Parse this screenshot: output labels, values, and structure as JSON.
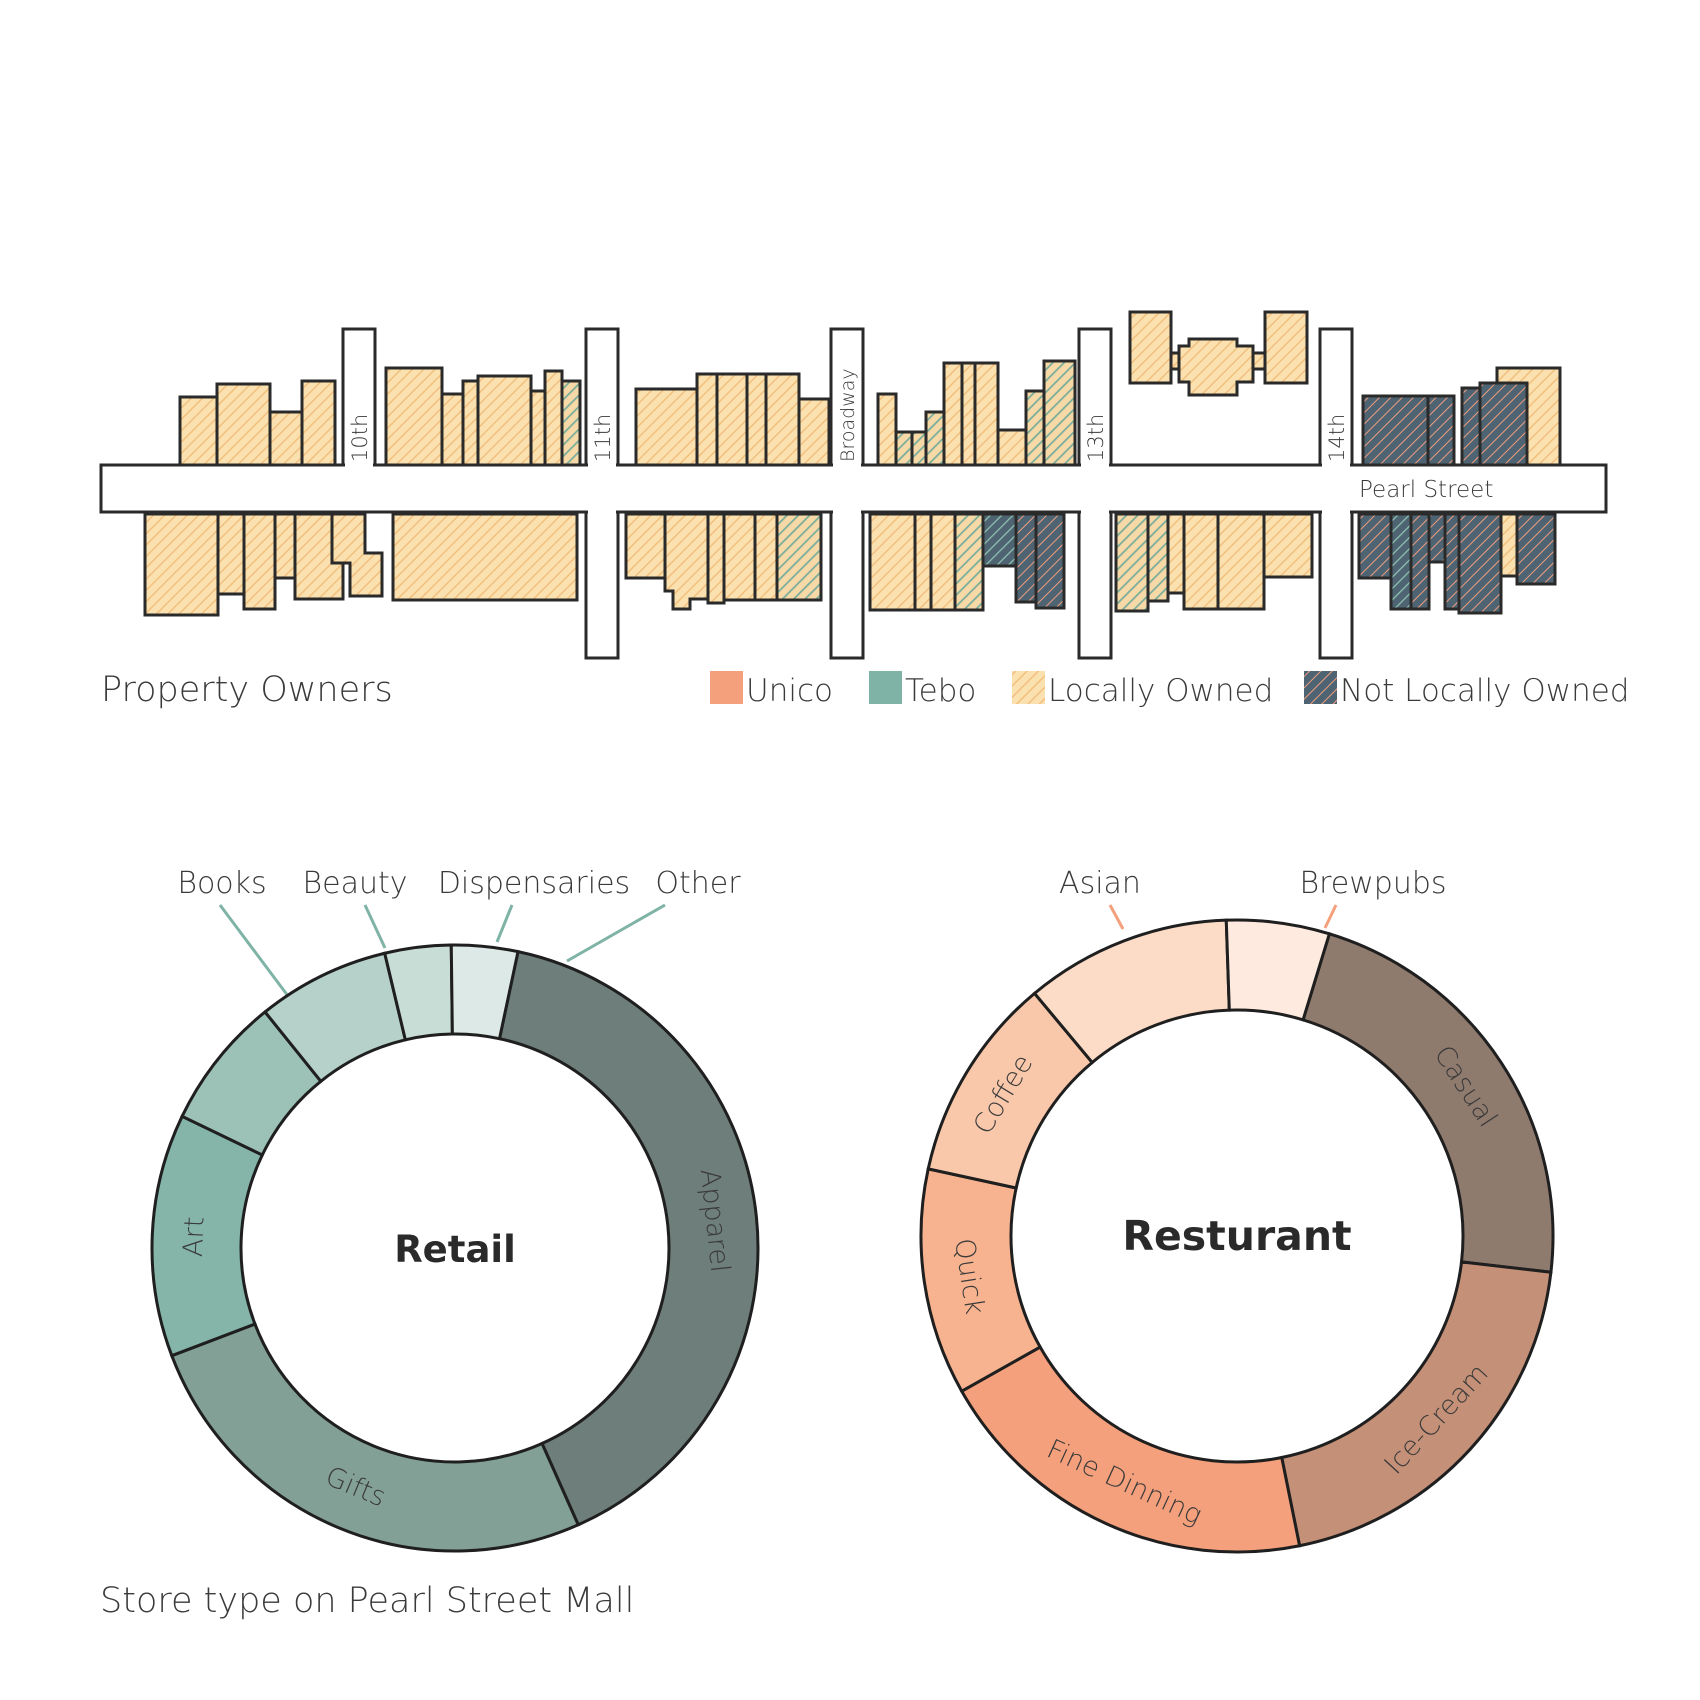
{
  "map": {
    "title": "Property Owners",
    "street_name": "Pearl Street",
    "cross_streets": [
      "10th",
      "11th",
      "Broadway",
      "13th",
      "14th"
    ]
  },
  "legend": [
    {
      "label": "Unico",
      "color": "#f5a07c",
      "pattern": "solid"
    },
    {
      "label": "Tebo",
      "color": "#7fb3a5",
      "pattern": "solid"
    },
    {
      "label": "Locally Owned",
      "color": "#f8d49c",
      "pattern": "hatch"
    },
    {
      "label": "Not Locally Owned",
      "color": "#4e6878",
      "pattern": "hatch"
    }
  ],
  "colors": {
    "local_fill": "#fbe1b0",
    "local_hatch": "#f2c07e",
    "tebo_mix": "#9fbfa6",
    "notlocal_fill": "#4f6472",
    "notlocal_hatch": "#ee9c7e",
    "outline": "#2a2a2a"
  },
  "charts_caption": "Store type on Pearl Street Mall",
  "chart_data": [
    {
      "type": "pie",
      "donut": true,
      "title": "Retail",
      "categories": [
        "Apparel",
        "Gifts",
        "Art",
        "Books",
        "Beauty",
        "Dispensaries",
        "Other"
      ],
      "values": [
        34,
        22,
        11,
        6,
        6,
        3,
        3
      ],
      "colors": [
        "#6e7e7a",
        "#83a097",
        "#84b5a8",
        "#9cc1b7",
        "#b5d1c9",
        "#c9ddd7",
        "#dde9e6"
      ]
    },
    {
      "type": "pie",
      "donut": true,
      "title": "Resturant",
      "categories": [
        "Casual",
        "Ice-Cream",
        "Fine Dinning",
        "Quick",
        "Coffee",
        "Asian",
        "Brewpubs"
      ],
      "values": [
        21,
        19,
        19,
        11,
        10,
        10,
        5
      ],
      "colors": [
        "#8f7a6e",
        "#c49077",
        "#f4a07c",
        "#f7b38f",
        "#f9c8ab",
        "#fcdcc7",
        "#feeade"
      ]
    }
  ]
}
